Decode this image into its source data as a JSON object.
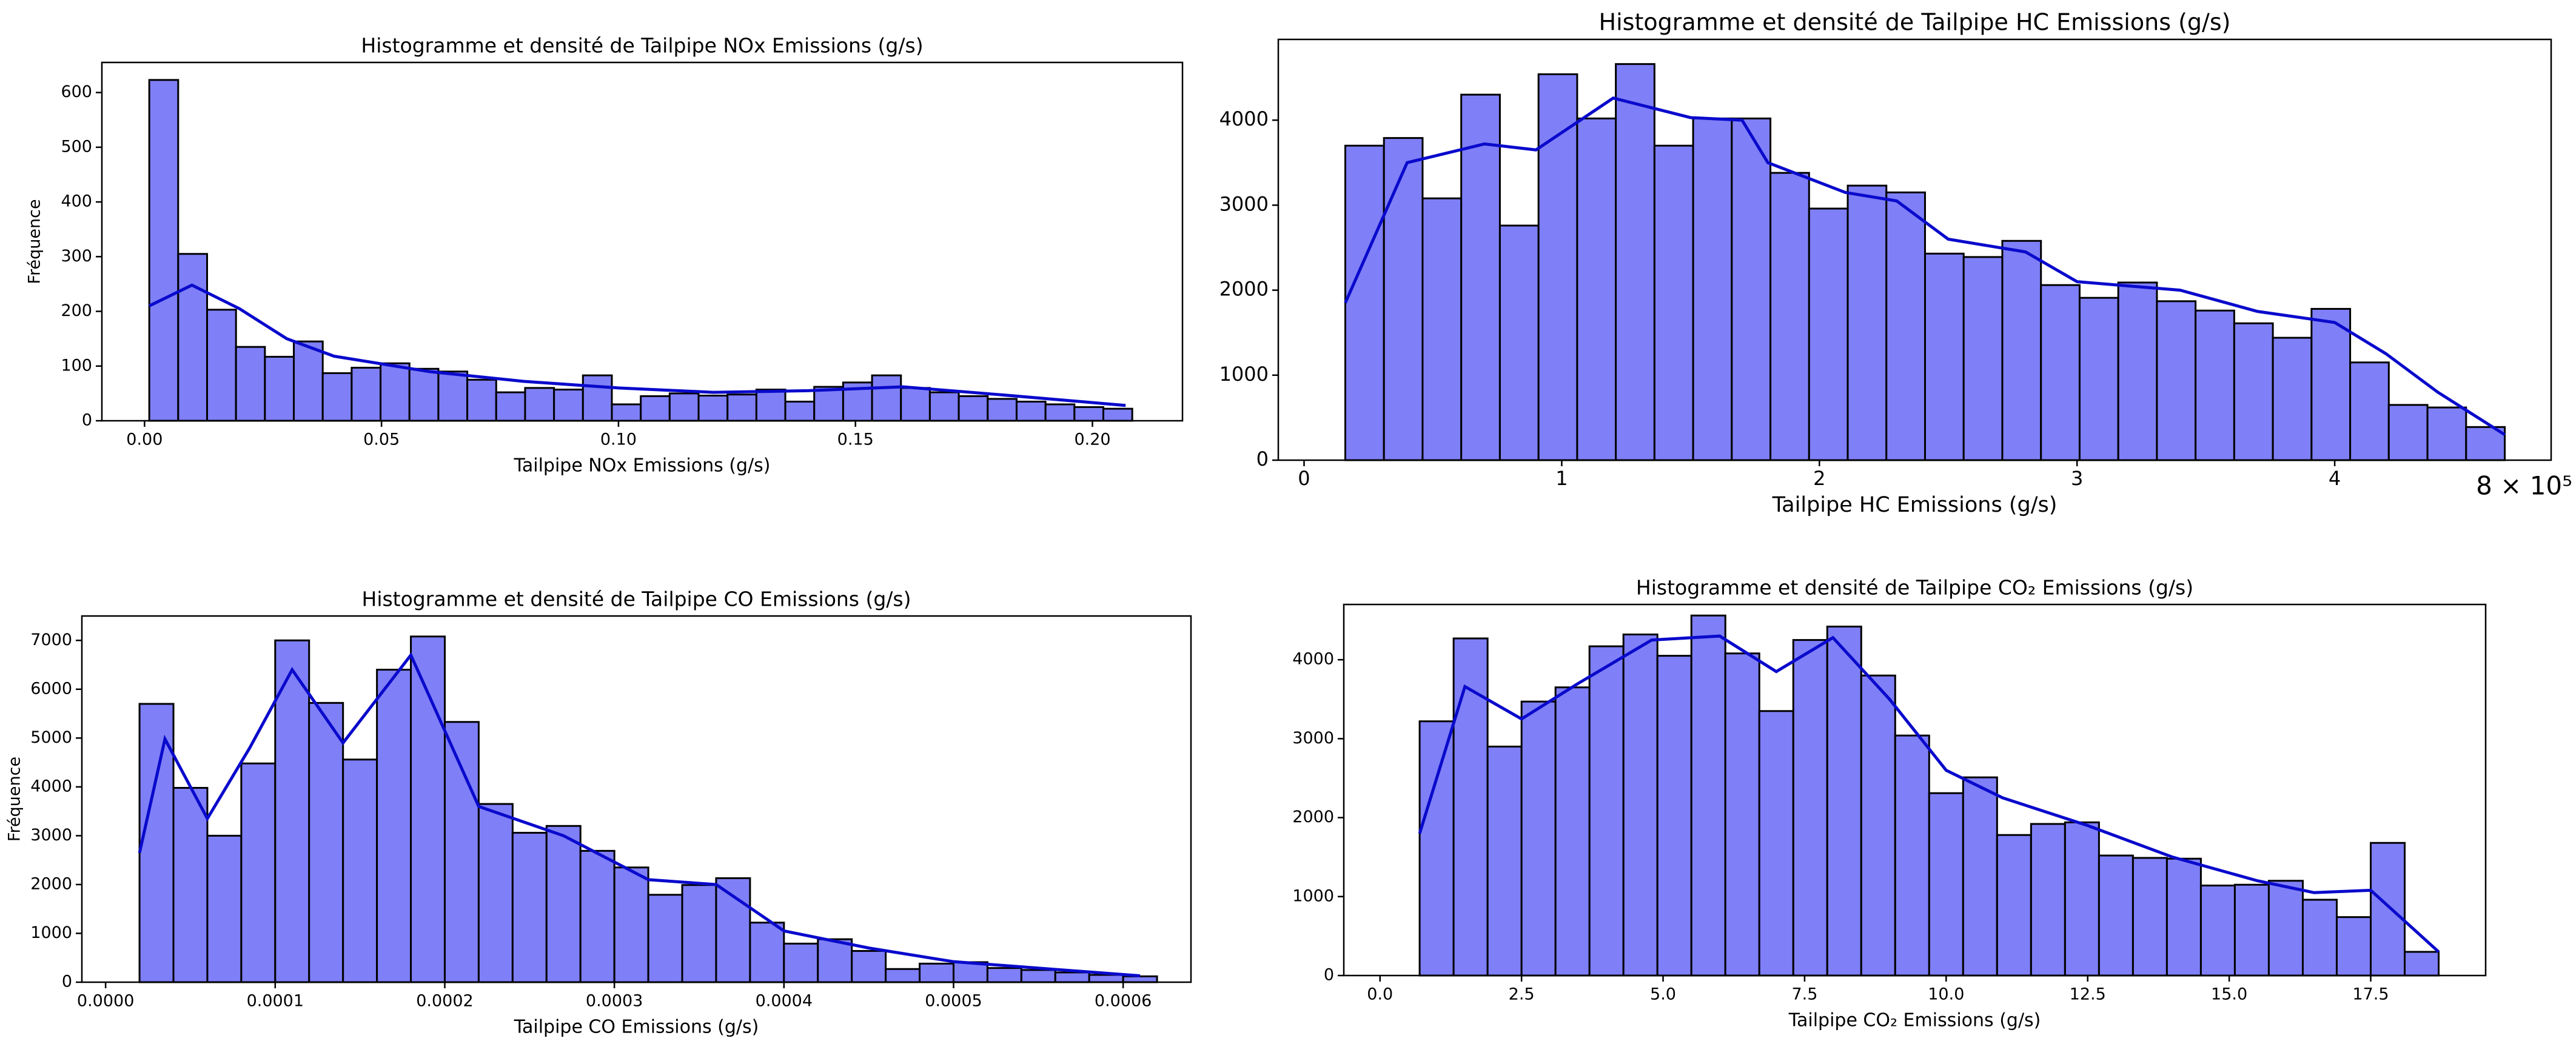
{
  "chart_data": [
    {
      "type": "histogram",
      "title": "Histogramme et densité de Tailpipe NOx Emissions (g/s)",
      "xlabel": "Tailpipe NOx Emissions (g/s)",
      "ylabel": "Fréquence",
      "bins": [
        0.001,
        0.0071,
        0.0132,
        0.0193,
        0.0254,
        0.0315,
        0.0376,
        0.0437,
        0.0498,
        0.0559,
        0.062,
        0.0681,
        0.0742,
        0.0803,
        0.0864,
        0.0925,
        0.0986,
        0.1047,
        0.1108,
        0.1169,
        0.123,
        0.1291,
        0.1352,
        0.1413,
        0.1474,
        0.1535,
        0.1596,
        0.1657,
        0.1718,
        0.1779,
        0.184,
        0.1901,
        0.1962,
        0.2023,
        0.2084
      ],
      "values": [
        623,
        305,
        203,
        135,
        117,
        145,
        87,
        97,
        105,
        95,
        90,
        75,
        52,
        60,
        57,
        83,
        30,
        45,
        50,
        46,
        48,
        57,
        35,
        62,
        70,
        83,
        60,
        52,
        45,
        40,
        35,
        30,
        25,
        22
      ],
      "color": "#7f7ff7",
      "kde": {
        "x": [
          0.001,
          0.01,
          0.02,
          0.03,
          0.04,
          0.06,
          0.08,
          0.1,
          0.12,
          0.14,
          0.16,
          0.18,
          0.207
        ],
        "values": [
          210,
          248,
          205,
          150,
          118,
          90,
          72,
          60,
          52,
          55,
          62,
          48,
          28
        ],
        "color": "#0a0acc"
      },
      "xlim": [
        -0.009,
        0.219
      ],
      "ylim": [
        0,
        655
      ],
      "xticks": [
        {
          "value": 0,
          "label": "0.00"
        },
        {
          "value": 0.05,
          "label": "0.05"
        },
        {
          "value": 0.1,
          "label": "0.10"
        },
        {
          "value": 0.15,
          "label": "0.15"
        },
        {
          "value": 0.2,
          "label": "0.20"
        }
      ],
      "yticks": [
        0,
        100,
        200,
        300,
        400,
        500,
        600
      ]
    },
    {
      "type": "histogram",
      "title": "Histogramme et densité de Tailpipe HC Emissions (g/s)",
      "xlabel": "Tailpipe HC Emissions (g/s)",
      "offset_label": "8 × 10⁵",
      "bins": [
        0.16,
        0.31,
        0.46,
        0.61,
        0.76,
        0.91,
        1.06,
        1.21,
        1.36,
        1.51,
        1.66,
        1.81,
        1.96,
        2.11,
        2.26,
        2.41,
        2.56,
        2.71,
        2.86,
        3.01,
        3.16,
        3.31,
        3.46,
        3.61,
        3.76,
        3.91,
        4.06,
        4.21,
        4.36,
        4.51,
        4.66
      ],
      "values": [
        3700,
        3790,
        3080,
        4300,
        2760,
        4540,
        4020,
        4660,
        3700,
        4020,
        4020,
        3380,
        2960,
        3230,
        3150,
        2430,
        2390,
        2580,
        2060,
        1910,
        2090,
        1870,
        1760,
        1610,
        1440,
        1780,
        1150,
        650,
        620,
        390
      ],
      "color": "#7f7ff7",
      "kde": {
        "x": [
          0.16,
          0.4,
          0.7,
          0.9,
          1.2,
          1.5,
          1.7,
          1.8,
          2.1,
          2.3,
          2.5,
          2.8,
          3.0,
          3.4,
          3.7,
          4.0,
          4.2,
          4.4,
          4.66
        ],
        "values": [
          1850,
          3500,
          3720,
          3650,
          4260,
          4030,
          4000,
          3500,
          3150,
          3050,
          2600,
          2450,
          2100,
          2000,
          1750,
          1620,
          1250,
          800,
          300
        ],
        "color": "#0a0acc"
      },
      "xlim": [
        -0.1,
        4.84
      ],
      "ylim": [
        0,
        4950
      ],
      "xticks": [
        0,
        1,
        2,
        3,
        4
      ],
      "yticks": [
        0,
        1000,
        2000,
        3000,
        4000
      ]
    },
    {
      "type": "histogram",
      "title": "Histogramme et densité de Tailpipe CO Emissions (g/s)",
      "xlabel": "Tailpipe CO Emissions (g/s)",
      "ylabel": "Fréquence",
      "bins": [
        2e-05,
        4e-05,
        6e-05,
        8e-05,
        0.0001,
        0.00012,
        0.00014,
        0.00016,
        0.00018,
        0.0002,
        0.00022,
        0.00024,
        0.00026,
        0.00028,
        0.0003,
        0.00032,
        0.00034,
        0.00036,
        0.00038,
        0.0004,
        0.00042,
        0.00044,
        0.00046,
        0.00048,
        0.0005,
        0.00052,
        0.00054,
        0.00056,
        0.00058,
        0.0006,
        0.00062
      ],
      "values": [
        5700,
        3980,
        3000,
        4480,
        7000,
        5720,
        4560,
        6400,
        7080,
        5330,
        3650,
        3060,
        3200,
        2690,
        2350,
        1790,
        1990,
        2130,
        1220,
        790,
        880,
        640,
        270,
        380,
        410,
        290,
        250,
        200,
        150,
        120
      ],
      "color": "#7f7ff7",
      "kde": {
        "x": [
          2e-05,
          3.5e-05,
          6e-05,
          8.5e-05,
          0.00011,
          0.00014,
          0.00018,
          0.00022,
          0.00027,
          0.00032,
          0.00036,
          0.0004,
          0.00045,
          0.0005,
          0.00061
        ],
        "values": [
          2650,
          4980,
          3350,
          4800,
          6400,
          4900,
          6700,
          3600,
          3000,
          2100,
          2000,
          1050,
          700,
          420,
          130
        ],
        "color": "#0a0acc"
      },
      "xlim": [
        -1.4e-05,
        0.00064
      ],
      "ylim": [
        0,
        7500
      ],
      "xticks": [
        {
          "value": 0,
          "label": "0.0000"
        },
        {
          "value": 0.0001,
          "label": "0.0001"
        },
        {
          "value": 0.0002,
          "label": "0.0002"
        },
        {
          "value": 0.0003,
          "label": "0.0003"
        },
        {
          "value": 0.0004,
          "label": "0.0004"
        },
        {
          "value": 0.0005,
          "label": "0.0005"
        },
        {
          "value": 0.0006,
          "label": "0.0006"
        }
      ],
      "yticks": [
        0,
        1000,
        2000,
        3000,
        4000,
        5000,
        6000,
        7000
      ]
    },
    {
      "type": "histogram",
      "title": "Histogramme et densité de Tailpipe CO₂ Emissions (g/s)",
      "xlabel": "Tailpipe CO₂ Emissions (g/s)",
      "bins": [
        0.7,
        1.3,
        1.9,
        2.5,
        3.1,
        3.7,
        4.3,
        4.9,
        5.5,
        6.1,
        6.7,
        7.3,
        7.9,
        8.5,
        9.1,
        9.7,
        10.3,
        10.9,
        11.5,
        12.1,
        12.7,
        13.3,
        13.9,
        14.5,
        15.1,
        15.7,
        16.3,
        16.9,
        17.5,
        18.1,
        18.7
      ],
      "values": [
        3220,
        4270,
        2900,
        3470,
        3650,
        4170,
        4320,
        4050,
        4560,
        4080,
        3350,
        4250,
        4420,
        3800,
        3040,
        2310,
        2510,
        1780,
        1920,
        1940,
        1520,
        1490,
        1480,
        1140,
        1150,
        1200,
        960,
        740,
        1680,
        300
      ],
      "color": "#7f7ff7",
      "kde": {
        "x": [
          0.7,
          1.5,
          2.5,
          3.5,
          4.8,
          6.0,
          7.0,
          8.0,
          9.0,
          10.0,
          11.0,
          12.5,
          14.0,
          15.5,
          16.5,
          17.5,
          18.7
        ],
        "values": [
          1800,
          3660,
          3250,
          3700,
          4250,
          4300,
          3850,
          4280,
          3500,
          2600,
          2250,
          1900,
          1500,
          1200,
          1050,
          1080,
          300
        ],
        "color": "#0a0acc"
      },
      "xlim": [
        -0.64,
        19.53
      ],
      "ylim": [
        0,
        4700
      ],
      "xticks": [
        {
          "value": 0,
          "label": "0.0"
        },
        2.5,
        {
          "value": 5,
          "label": "5.0"
        },
        7.5,
        {
          "value": 10,
          "label": "10.0"
        },
        12.5,
        {
          "value": 15,
          "label": "15.0"
        },
        17.5
      ],
      "yticks": [
        0,
        1000,
        2000,
        3000,
        4000
      ]
    }
  ]
}
